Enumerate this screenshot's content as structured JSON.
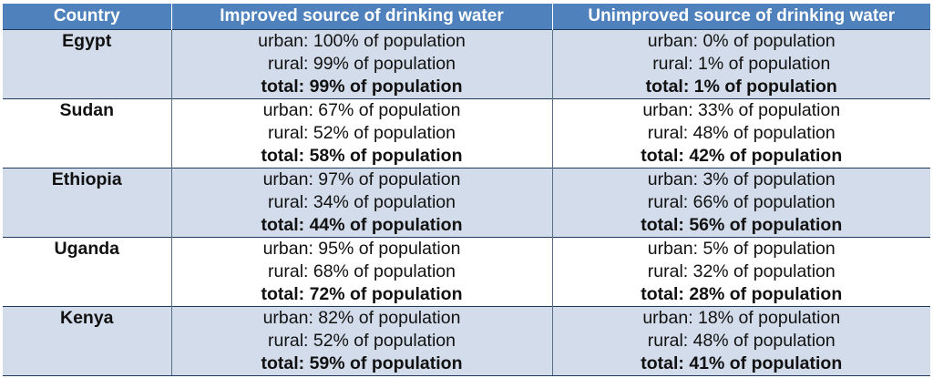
{
  "colors": {
    "header_bg": "#4f81bd",
    "row_shaded": "#d3dcea",
    "row_plain": "#ffffff"
  },
  "headers": [
    "Country",
    "Improved source of drinking water",
    "Unimproved source of drinking water"
  ],
  "rows": [
    {
      "country": "Egypt",
      "shaded": true,
      "improved": [
        "urban: 100% of population",
        "rural: 99% of population",
        "total: 99% of population"
      ],
      "unimproved": [
        "urban: 0% of population",
        "rural: 1% of population",
        "total: 1% of population"
      ]
    },
    {
      "country": "Sudan",
      "shaded": false,
      "improved": [
        "urban: 67% of population",
        "rural: 52% of population",
        "total: 58% of population"
      ],
      "unimproved": [
        "urban: 33% of population",
        "rural: 48% of population",
        "total: 42% of population"
      ]
    },
    {
      "country": "Ethiopia",
      "shaded": true,
      "improved": [
        "urban: 97% of population",
        "rural: 34% of population",
        "total: 44% of population"
      ],
      "unimproved": [
        "urban: 3% of population",
        "rural: 66% of population",
        "total: 56% of population"
      ]
    },
    {
      "country": "Uganda",
      "shaded": false,
      "improved": [
        "urban: 95% of population",
        "rural: 68% of population",
        "total: 72% of population"
      ],
      "unimproved": [
        "urban: 5% of population",
        "rural: 32% of population",
        "total: 28% of population"
      ]
    },
    {
      "country": "Kenya",
      "shaded": true,
      "improved": [
        "urban: 82% of population",
        "rural: 52% of population",
        "total: 59% of population"
      ],
      "unimproved": [
        "urban: 18% of population",
        "rural: 48% of population",
        "total: 41% of population"
      ]
    }
  ]
}
